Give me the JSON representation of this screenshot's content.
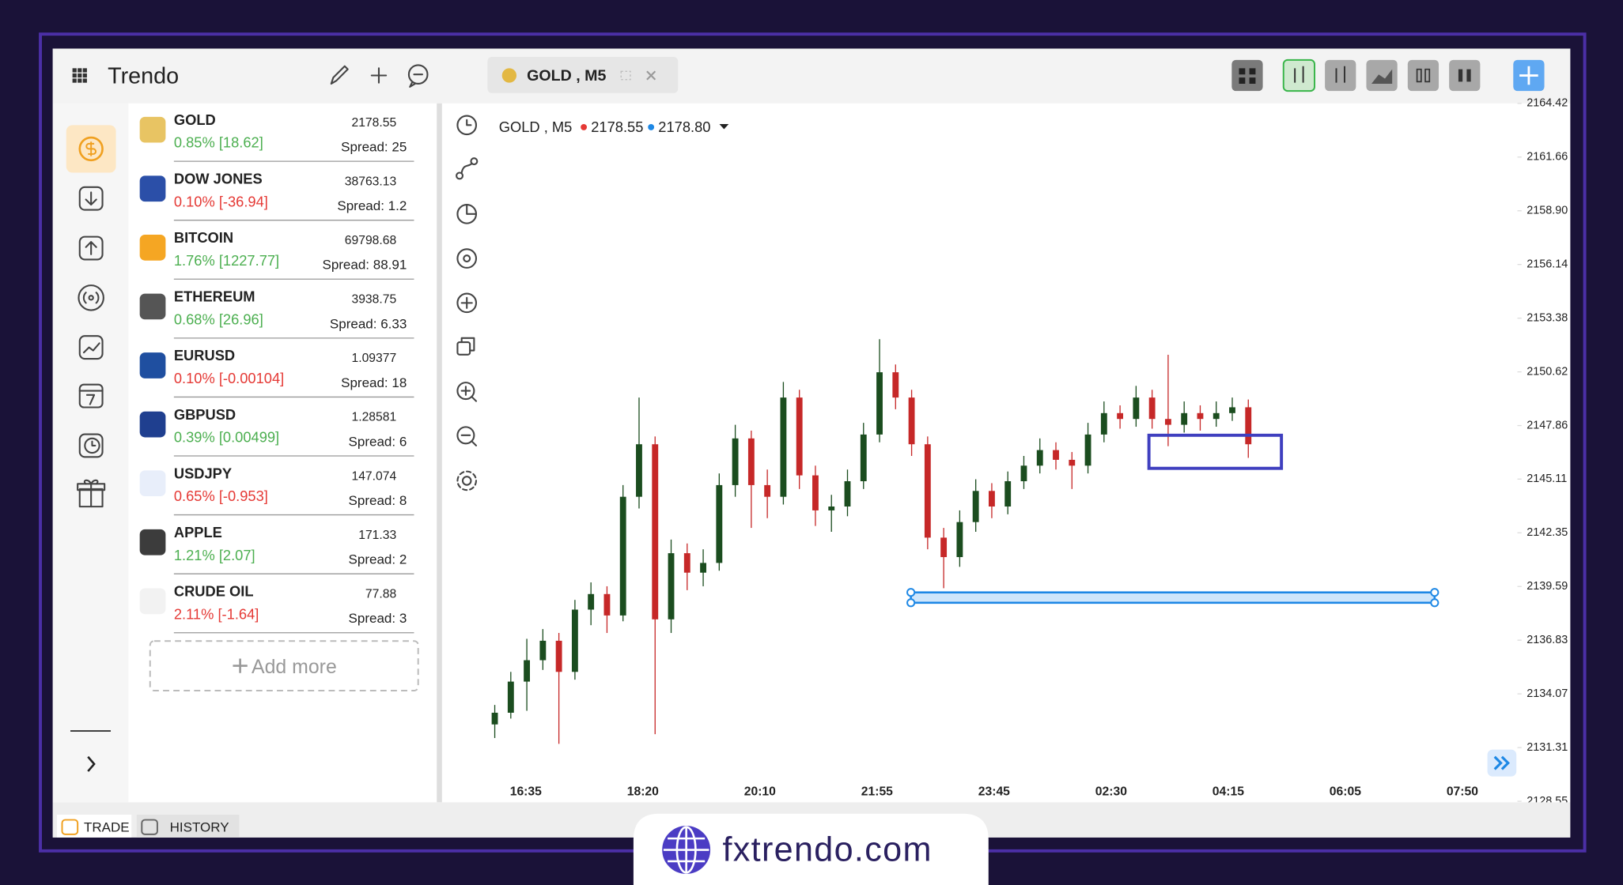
{
  "header": {
    "app_name": "Trendo"
  },
  "tab": {
    "label": "GOLD , M5"
  },
  "watchlist": {
    "items": [
      {
        "name": "GOLD",
        "change": "0.85% [18.62]",
        "change_color": "#4caf50",
        "price": "2178.55",
        "spread": "Spread: 25"
      },
      {
        "name": "DOW JONES",
        "change": "0.10% [-36.94]",
        "change_color": "#e53935",
        "price": "38763.13",
        "spread": "Spread: 1.2"
      },
      {
        "name": "BITCOIN",
        "change": "1.76% [1227.77]",
        "change_color": "#4caf50",
        "price": "69798.68",
        "spread": "Spread: 88.91"
      },
      {
        "name": "ETHEREUM",
        "change": "0.68% [26.96]",
        "change_color": "#4caf50",
        "price": "3938.75",
        "spread": "Spread: 6.33"
      },
      {
        "name": "EURUSD",
        "change": "0.10% [-0.00104]",
        "change_color": "#e53935",
        "price": "1.09377",
        "spread": "Spread: 18"
      },
      {
        "name": "GBPUSD",
        "change": "0.39% [0.00499]",
        "change_color": "#4caf50",
        "price": "1.28581",
        "spread": "Spread: 6"
      },
      {
        "name": "USDJPY",
        "change": "0.65% [-0.953]",
        "change_color": "#e53935",
        "price": "147.074",
        "spread": "Spread: 8"
      },
      {
        "name": "APPLE",
        "change": "1.21% [2.07]",
        "change_color": "#4caf50",
        "price": "171.33",
        "spread": "Spread: 2"
      },
      {
        "name": "CRUDE OIL",
        "change": "2.11% [-1.64]",
        "change_color": "#e53935",
        "price": "77.88",
        "spread": "Spread: 3"
      }
    ],
    "add_more": "Add more"
  },
  "bottom_tabs": [
    "TRADE",
    "HISTORY"
  ],
  "footer": {
    "site": "fxtrendo.com"
  },
  "chart": {
    "symbol": "GOLD , M5",
    "bid": "2178.55",
    "ask": "2178.80",
    "up_color": "#1b4d1f",
    "down_color": "#c62828",
    "ylim": [
      2128.55,
      2164.42
    ],
    "yticks": [
      2164.42,
      2161.66,
      {
        "value": 2158.9,
        "label": "2158.90"
      },
      2156.14,
      2153.38,
      2150.62,
      2147.86,
      2145.11,
      2142.35,
      2139.59,
      2136.83,
      2134.07,
      2131.31,
      2128.55
    ],
    "xticks": [
      "16:35",
      "18:20",
      "20:10",
      "21:55",
      "23:45",
      "02:30",
      "04:15",
      "06:05",
      "07:50"
    ],
    "candles": [
      [
        2132.5,
        2133.5,
        2131.8,
        2133.1
      ],
      [
        2133.1,
        2135.2,
        2132.8,
        2134.7
      ],
      [
        2134.7,
        2136.9,
        2133.2,
        2135.8
      ],
      [
        2135.8,
        2137.4,
        2135.3,
        2136.8
      ],
      [
        2136.8,
        2137.2,
        2131.5,
        2135.2
      ],
      [
        2135.2,
        2138.9,
        2134.8,
        2138.4
      ],
      [
        2138.4,
        2139.8,
        2137.6,
        2139.2
      ],
      [
        2139.2,
        2139.6,
        2137.2,
        2138.1
      ],
      [
        2138.1,
        2144.8,
        2137.8,
        2144.2
      ],
      [
        2144.2,
        2149.3,
        2143.6,
        2146.9
      ],
      [
        2146.9,
        2147.3,
        2132.0,
        2137.9
      ],
      [
        2137.9,
        2142.0,
        2137.2,
        2141.3
      ],
      [
        2141.3,
        2141.8,
        2139.4,
        2140.3
      ],
      [
        2140.3,
        2141.5,
        2139.6,
        2140.8
      ],
      [
        2140.8,
        2145.4,
        2140.4,
        2144.8
      ],
      [
        2144.8,
        2147.9,
        2144.2,
        2147.2
      ],
      [
        2147.2,
        2147.6,
        2142.6,
        2144.8
      ],
      [
        2144.8,
        2145.6,
        2143.1,
        2144.2
      ],
      [
        2144.2,
        2150.1,
        2143.8,
        2149.3
      ],
      [
        2149.3,
        2149.7,
        2144.6,
        2145.3
      ],
      [
        2145.3,
        2145.8,
        2142.7,
        2143.5
      ],
      [
        2143.5,
        2144.3,
        2142.4,
        2143.7
      ],
      [
        2143.7,
        2145.6,
        2143.2,
        2145.0
      ],
      [
        2145.0,
        2148.0,
        2144.6,
        2147.4
      ],
      [
        2147.4,
        2152.3,
        2147.0,
        2150.6
      ],
      [
        2150.6,
        2151.0,
        2148.7,
        2149.3
      ],
      [
        2149.3,
        2149.7,
        2146.3,
        2146.9
      ],
      [
        2146.9,
        2147.3,
        2141.5,
        2142.1
      ],
      [
        2142.1,
        2142.6,
        2139.5,
        2141.1
      ],
      [
        2141.1,
        2143.5,
        2140.6,
        2142.9
      ],
      [
        2142.9,
        2145.1,
        2142.4,
        2144.5
      ],
      [
        2144.5,
        2144.9,
        2143.1,
        2143.7
      ],
      [
        2143.7,
        2145.5,
        2143.3,
        2145.0
      ],
      [
        2145.0,
        2146.3,
        2144.6,
        2145.8
      ],
      [
        2145.8,
        2147.2,
        2145.4,
        2146.6
      ],
      [
        2146.6,
        2147.0,
        2145.6,
        2146.1
      ],
      [
        2146.1,
        2146.5,
        2144.6,
        2145.8
      ],
      [
        2145.8,
        2148.0,
        2145.4,
        2147.4
      ],
      [
        2147.4,
        2149.1,
        2147.0,
        2148.5
      ],
      [
        2148.5,
        2148.9,
        2147.7,
        2148.2
      ],
      [
        2148.2,
        2149.9,
        2147.8,
        2149.3
      ],
      [
        2149.3,
        2149.7,
        2147.7,
        2148.2
      ],
      [
        2148.2,
        2151.5,
        2146.8,
        2147.9
      ],
      [
        2147.9,
        2149.1,
        2147.5,
        2148.5
      ],
      [
        2148.5,
        2148.9,
        2147.6,
        2148.2
      ],
      [
        2148.2,
        2149.1,
        2147.8,
        2148.5
      ],
      [
        2148.5,
        2149.3,
        2148.1,
        2148.8
      ],
      [
        2148.8,
        2149.2,
        2146.2,
        2146.9
      ]
    ]
  }
}
